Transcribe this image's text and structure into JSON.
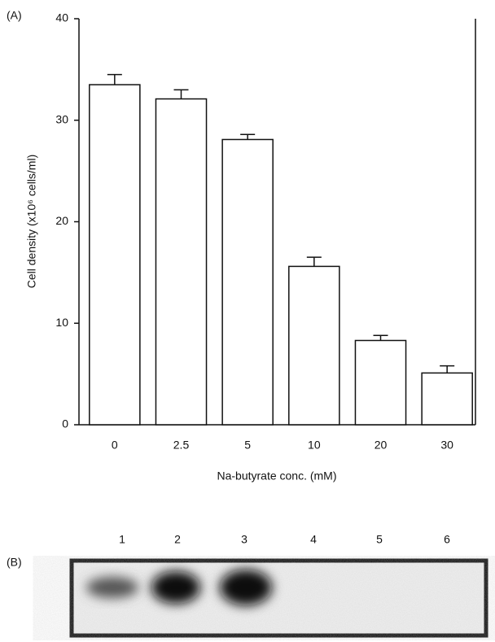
{
  "chart_data": {
    "type": "bar",
    "panel_a": "(A)",
    "panel_b": "(B)",
    "xlabel": "Na-butyrate conc. (mM)",
    "ylabel": "Cell density (x10⁶ cells/ml)",
    "categories": [
      "0",
      "2.5",
      "5",
      "10",
      "20",
      "30"
    ],
    "values": [
      33.5,
      32.1,
      28.1,
      15.6,
      8.3,
      5.1
    ],
    "errors": [
      1.0,
      0.9,
      0.5,
      0.9,
      0.5,
      0.7
    ],
    "color": "#ffffff",
    "ylim": [
      0,
      40
    ],
    "yticks": [
      0,
      10,
      20,
      30,
      40
    ],
    "lanes": [
      "1",
      "2",
      "3",
      "4",
      "5",
      "6"
    ]
  }
}
